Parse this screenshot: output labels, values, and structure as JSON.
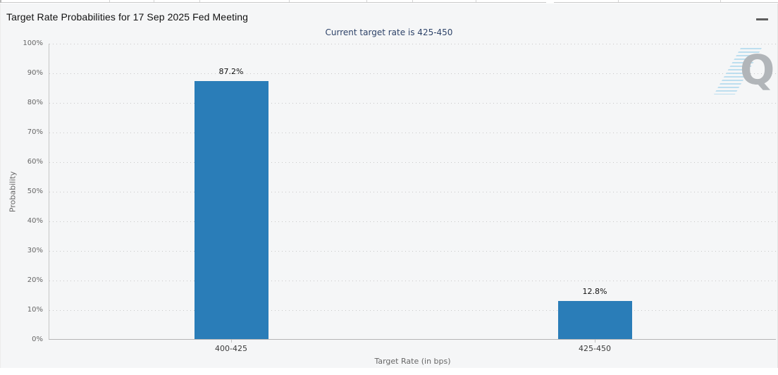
{
  "header": {
    "title": "Target Rate Probabilities for 17 Sep 2025 Fed Meeting",
    "menu_icon": "hamburger-icon"
  },
  "chart_data": {
    "type": "bar",
    "title": "Target Rate Probabilities for 17 Sep 2025 Fed Meeting",
    "subtitle": "Current target rate is 425-450",
    "subtitle_color": "#2e4369",
    "categories": [
      "400-425",
      "425-450"
    ],
    "values": [
      87.2,
      12.8
    ],
    "value_labels": [
      "87.2%",
      "12.8%"
    ],
    "xlabel": "Target Rate (in bps)",
    "ylabel": "Probability",
    "ylim": [
      0,
      100
    ],
    "ytick_labels": [
      "0%",
      "10%",
      "20%",
      "30%",
      "40%",
      "50%",
      "60%",
      "70%",
      "80%",
      "90%",
      "100%"
    ],
    "grid": "horizontal-dotted",
    "legend": "none",
    "bar_color": "#2a7db8",
    "watermark_letter": "Q"
  }
}
